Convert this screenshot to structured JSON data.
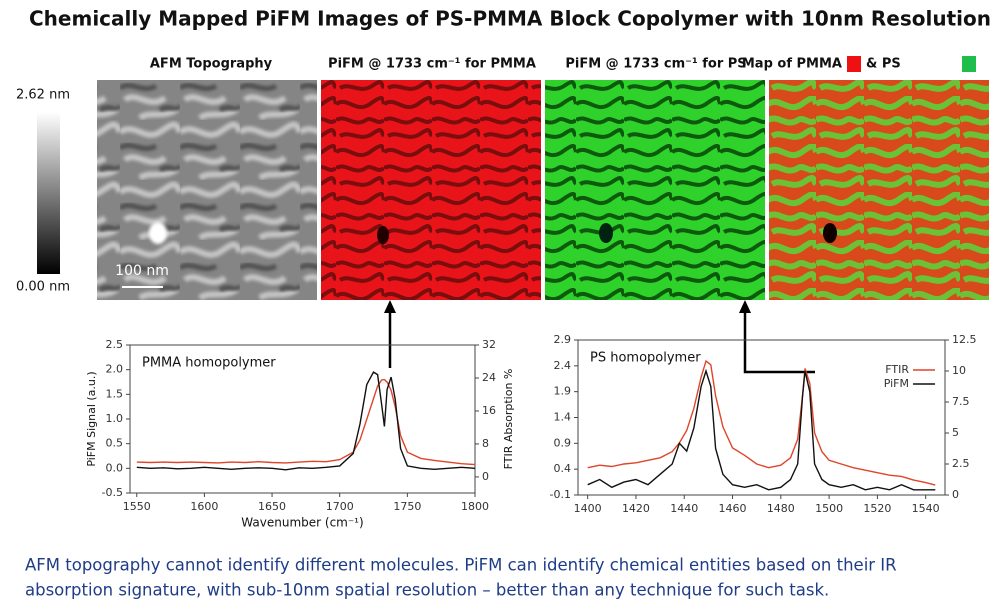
{
  "title": "Chemically Mapped PiFM Images of PS-PMMA Block Copolymer with 10nm Resolution",
  "panels": [
    "AFM Topography",
    "PiFM @ 1733 cm⁻¹ for PMMA",
    "PiFM @ 1733 cm⁻¹ for PS"
  ],
  "map_label": {
    "pmma": "Map of PMMA",
    "ps": "& PS"
  },
  "colorbar": {
    "max_label": "2.62 nm",
    "min_label": "0.00 nm"
  },
  "scale_bar": "100 nm",
  "caption": [
    "AFM topography cannot identify different molecules. PiFM can identify chemical entities based on their IR",
    "absorption signature, with sub-10nm spatial resolution – better than any technique for such task."
  ],
  "chart_data": [
    {
      "type": "line",
      "annotation": "PMMA homopolymer",
      "x_label": "Wavenumber (cm⁻¹)",
      "y_label": "PiFM Signal (a.u.)",
      "y2_label": "FTIR Absorption %",
      "x": [
        1550,
        1560,
        1570,
        1580,
        1590,
        1600,
        1610,
        1620,
        1630,
        1640,
        1650,
        1660,
        1670,
        1680,
        1690,
        1700,
        1710,
        1715,
        1720,
        1725,
        1728,
        1731,
        1733,
        1735,
        1738,
        1741,
        1745,
        1750,
        1760,
        1770,
        1780,
        1790,
        1800
      ],
      "xlim": [
        1545,
        1800
      ],
      "xticks": [
        1550,
        1600,
        1650,
        1700,
        1750,
        1800
      ],
      "ylim": [
        -0.5,
        2.5
      ],
      "yticks": [
        -0.5,
        {
          "value": 0,
          "label": "0.0"
        },
        0.5,
        {
          "value": 1,
          "label": "1.0"
        },
        1.5,
        {
          "value": 2,
          "label": "2.0"
        },
        2.5
      ],
      "y2lim": [
        -3.9,
        32
      ],
      "y2ticks": [
        0,
        8,
        16,
        24,
        32
      ],
      "legend": false,
      "series": [
        {
          "name": "FTIR",
          "color": "#e0442a",
          "axis": "y2",
          "values": [
            3.6,
            3.5,
            3.6,
            3.5,
            3.6,
            3.5,
            3.4,
            3.6,
            3.5,
            3.7,
            3.5,
            3.4,
            3.6,
            3.8,
            3.7,
            4.2,
            6,
            9,
            14,
            19,
            22,
            23.5,
            23.6,
            23,
            21,
            17,
            10,
            6,
            4.5,
            4,
            3.6,
            3.2,
            3
          ]
        },
        {
          "name": "PiFM",
          "color": "#111111",
          "values": [
            0.02,
            0,
            0.01,
            -0.01,
            0,
            0.02,
            0,
            -0.02,
            0,
            0.01,
            0,
            -0.03,
            0.01,
            0,
            0.02,
            0.05,
            0.3,
            0.9,
            1.7,
            1.95,
            1.9,
            1.3,
            0.85,
            1.6,
            1.85,
            1.4,
            0.4,
            0.05,
            0,
            -0.02,
            0,
            0.02,
            0
          ]
        }
      ]
    },
    {
      "type": "line",
      "annotation": "PS homopolymer",
      "x": [
        1400,
        1405,
        1410,
        1415,
        1420,
        1425,
        1430,
        1435,
        1438,
        1441,
        1444,
        1447,
        1449,
        1451,
        1453,
        1456,
        1460,
        1465,
        1470,
        1475,
        1480,
        1484,
        1487,
        1489,
        1490,
        1492,
        1494,
        1497,
        1500,
        1505,
        1510,
        1515,
        1520,
        1525,
        1530,
        1535,
        1540,
        1544
      ],
      "xlim": [
        1396,
        1548
      ],
      "xticks": [
        1400,
        1420,
        1440,
        1460,
        1480,
        1500,
        1520,
        1540
      ],
      "ylim": [
        -0.1,
        2.9
      ],
      "yticks": [
        -0.1,
        0.4,
        0.9,
        1.4,
        1.9,
        2.4,
        2.9
      ],
      "y2lim": [
        0,
        12.5
      ],
      "y2ticks": [
        0,
        2.5,
        5,
        7.5,
        10,
        12.5
      ],
      "legend": "upper right",
      "series": [
        {
          "name": "FTIR",
          "color": "#e0442a",
          "axis": "y2",
          "values": [
            2.2,
            2.4,
            2.3,
            2.5,
            2.6,
            2.8,
            3.0,
            3.5,
            4.2,
            5.2,
            7,
            9.5,
            10.8,
            10.5,
            8,
            5.5,
            3.8,
            3.2,
            2.5,
            2.2,
            2.4,
            3,
            4.5,
            8,
            10.2,
            9,
            5,
            3.5,
            2.8,
            2.5,
            2.2,
            2,
            1.8,
            1.6,
            1.5,
            1.2,
            1.0,
            0.8
          ]
        },
        {
          "name": "PiFM",
          "color": "#111111",
          "values": [
            0.1,
            0.2,
            0.05,
            0.15,
            0.2,
            0.1,
            0.3,
            0.5,
            0.9,
            0.75,
            1.2,
            2.0,
            2.3,
            2.0,
            0.8,
            0.3,
            0.1,
            0.05,
            0.1,
            0,
            0.05,
            0.2,
            0.5,
            1.8,
            2.3,
            1.9,
            0.5,
            0.2,
            0.1,
            0.05,
            0.1,
            0,
            0.05,
            0,
            0.1,
            0,
            0,
            0
          ]
        }
      ]
    }
  ]
}
